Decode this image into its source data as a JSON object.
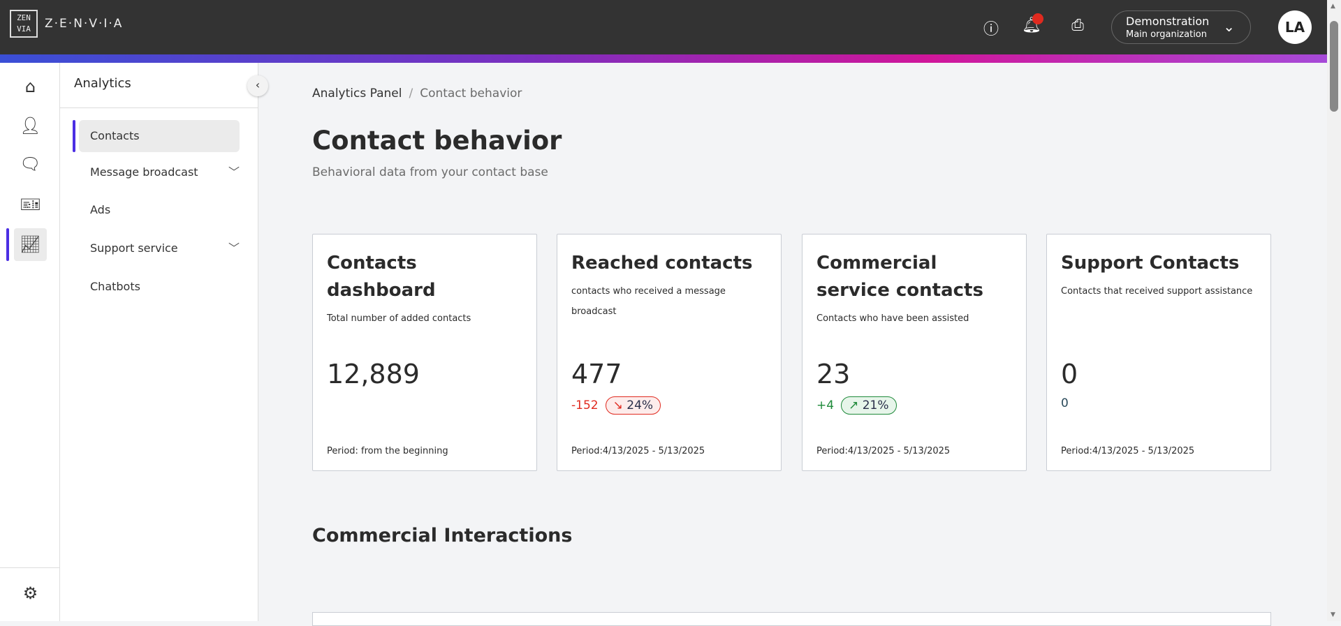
{
  "header": {
    "logo_text": "Z·E·N·V·I·A",
    "logo_mark": "ZENVIA",
    "org_name": "Demonstration",
    "org_sub": "Main organization",
    "avatar": "LA",
    "icons": [
      "help-icon",
      "bell-icon",
      "inbox-icon"
    ],
    "notification_color": "#e02a1f"
  },
  "rail": {
    "icons": [
      "home-icon",
      "contacts-icon",
      "chat-icon",
      "ticket-icon",
      "analytics-icon",
      "settings-icon"
    ],
    "active": "analytics-icon",
    "accent": "#4b2ee3"
  },
  "subnav": {
    "title": "Analytics",
    "items": [
      {
        "label": "Contacts",
        "active": true
      },
      {
        "label": "Message broadcast",
        "expandable": true
      },
      {
        "label": "Ads"
      },
      {
        "label": "Support service",
        "expandable": true
      },
      {
        "label": "Chatbots"
      }
    ]
  },
  "breadcrumb": {
    "parent": "Analytics Panel",
    "sep": "/",
    "current": "Contact behavior"
  },
  "page": {
    "title": "Contact behavior",
    "subtitle": "Behavioral data from your contact base"
  },
  "cards": [
    {
      "title": "Contacts dashboard",
      "desc": "Total number of added contacts",
      "value": "12,889",
      "period": "Period: from the beginning"
    },
    {
      "title": "Reached contacts",
      "desc": "contacts who received a message broadcast",
      "value": "477",
      "delta": "-152",
      "pct": "24%",
      "trend": "down",
      "period": "Period:4/13/2025 - 5/13/2025"
    },
    {
      "title": "Commercial service contacts",
      "desc": "Contacts who have been assisted",
      "value": "23",
      "delta": "+4",
      "pct": "21%",
      "trend": "up",
      "period": "Period:4/13/2025 - 5/13/2025"
    },
    {
      "title": "Support Contacts",
      "desc": "Contacts that received support assistance",
      "value": "0",
      "delta": "0",
      "period": "Period:4/13/2025 - 5/13/2025"
    }
  ],
  "section_title": "Commercial Interactions"
}
